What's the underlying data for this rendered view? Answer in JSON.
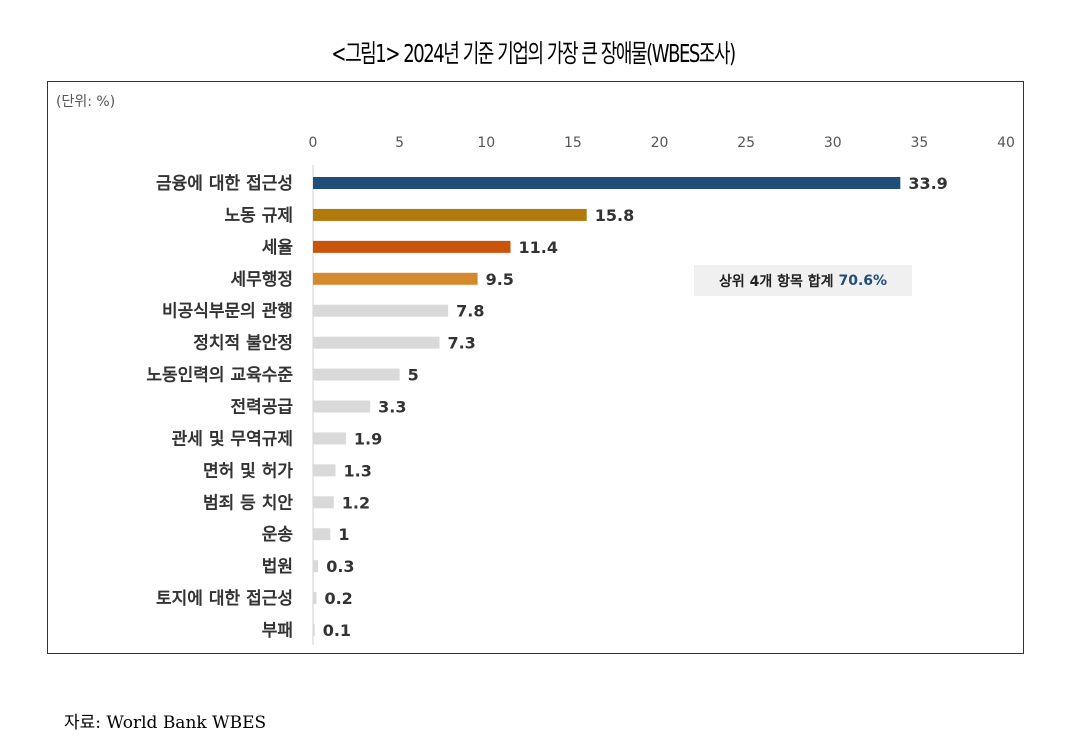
{
  "title": "<그림1> 2024년 기준 기업의 가장 큰 장애물(WBES조사)",
  "source": "자료: World Bank WBES",
  "annotation": {
    "label": "상위 4개 항목 합계",
    "value": "70.6%"
  },
  "chart_data": {
    "type": "bar",
    "orientation": "horizontal",
    "title": "<그림1> 2024년 기준 기업의 가장 큰 장애물(WBES조사)",
    "unit_label": "(단위: %)",
    "xlim": [
      0,
      40
    ],
    "xticks": [
      0,
      5,
      10,
      15,
      20,
      25,
      30,
      35,
      40
    ],
    "xaxis_position": "top",
    "grid": false,
    "categories": [
      "금융에 대한 접근성",
      "노동 규제",
      "세율",
      "세무행정",
      "비공식부문의 관행",
      "정치적 불안정",
      "노동인력의 교육수준",
      "전력공급",
      "관세 및 무역규제",
      "면허 및 허가",
      "범죄 등 치안",
      "운송",
      "법원",
      "토지에 대한 접근성",
      "부패"
    ],
    "values": [
      33.9,
      15.8,
      11.4,
      9.5,
      7.8,
      7.3,
      5,
      3.3,
      1.9,
      1.3,
      1.2,
      1,
      0.3,
      0.2,
      0.1
    ],
    "colors": [
      "#1f4e79",
      "#b07a0c",
      "#c9540c",
      "#d38a2c",
      "#d9d9d9",
      "#d9d9d9",
      "#d9d9d9",
      "#d9d9d9",
      "#d9d9d9",
      "#d9d9d9",
      "#d9d9d9",
      "#d9d9d9",
      "#d9d9d9",
      "#d9d9d9",
      "#d9d9d9"
    ]
  }
}
